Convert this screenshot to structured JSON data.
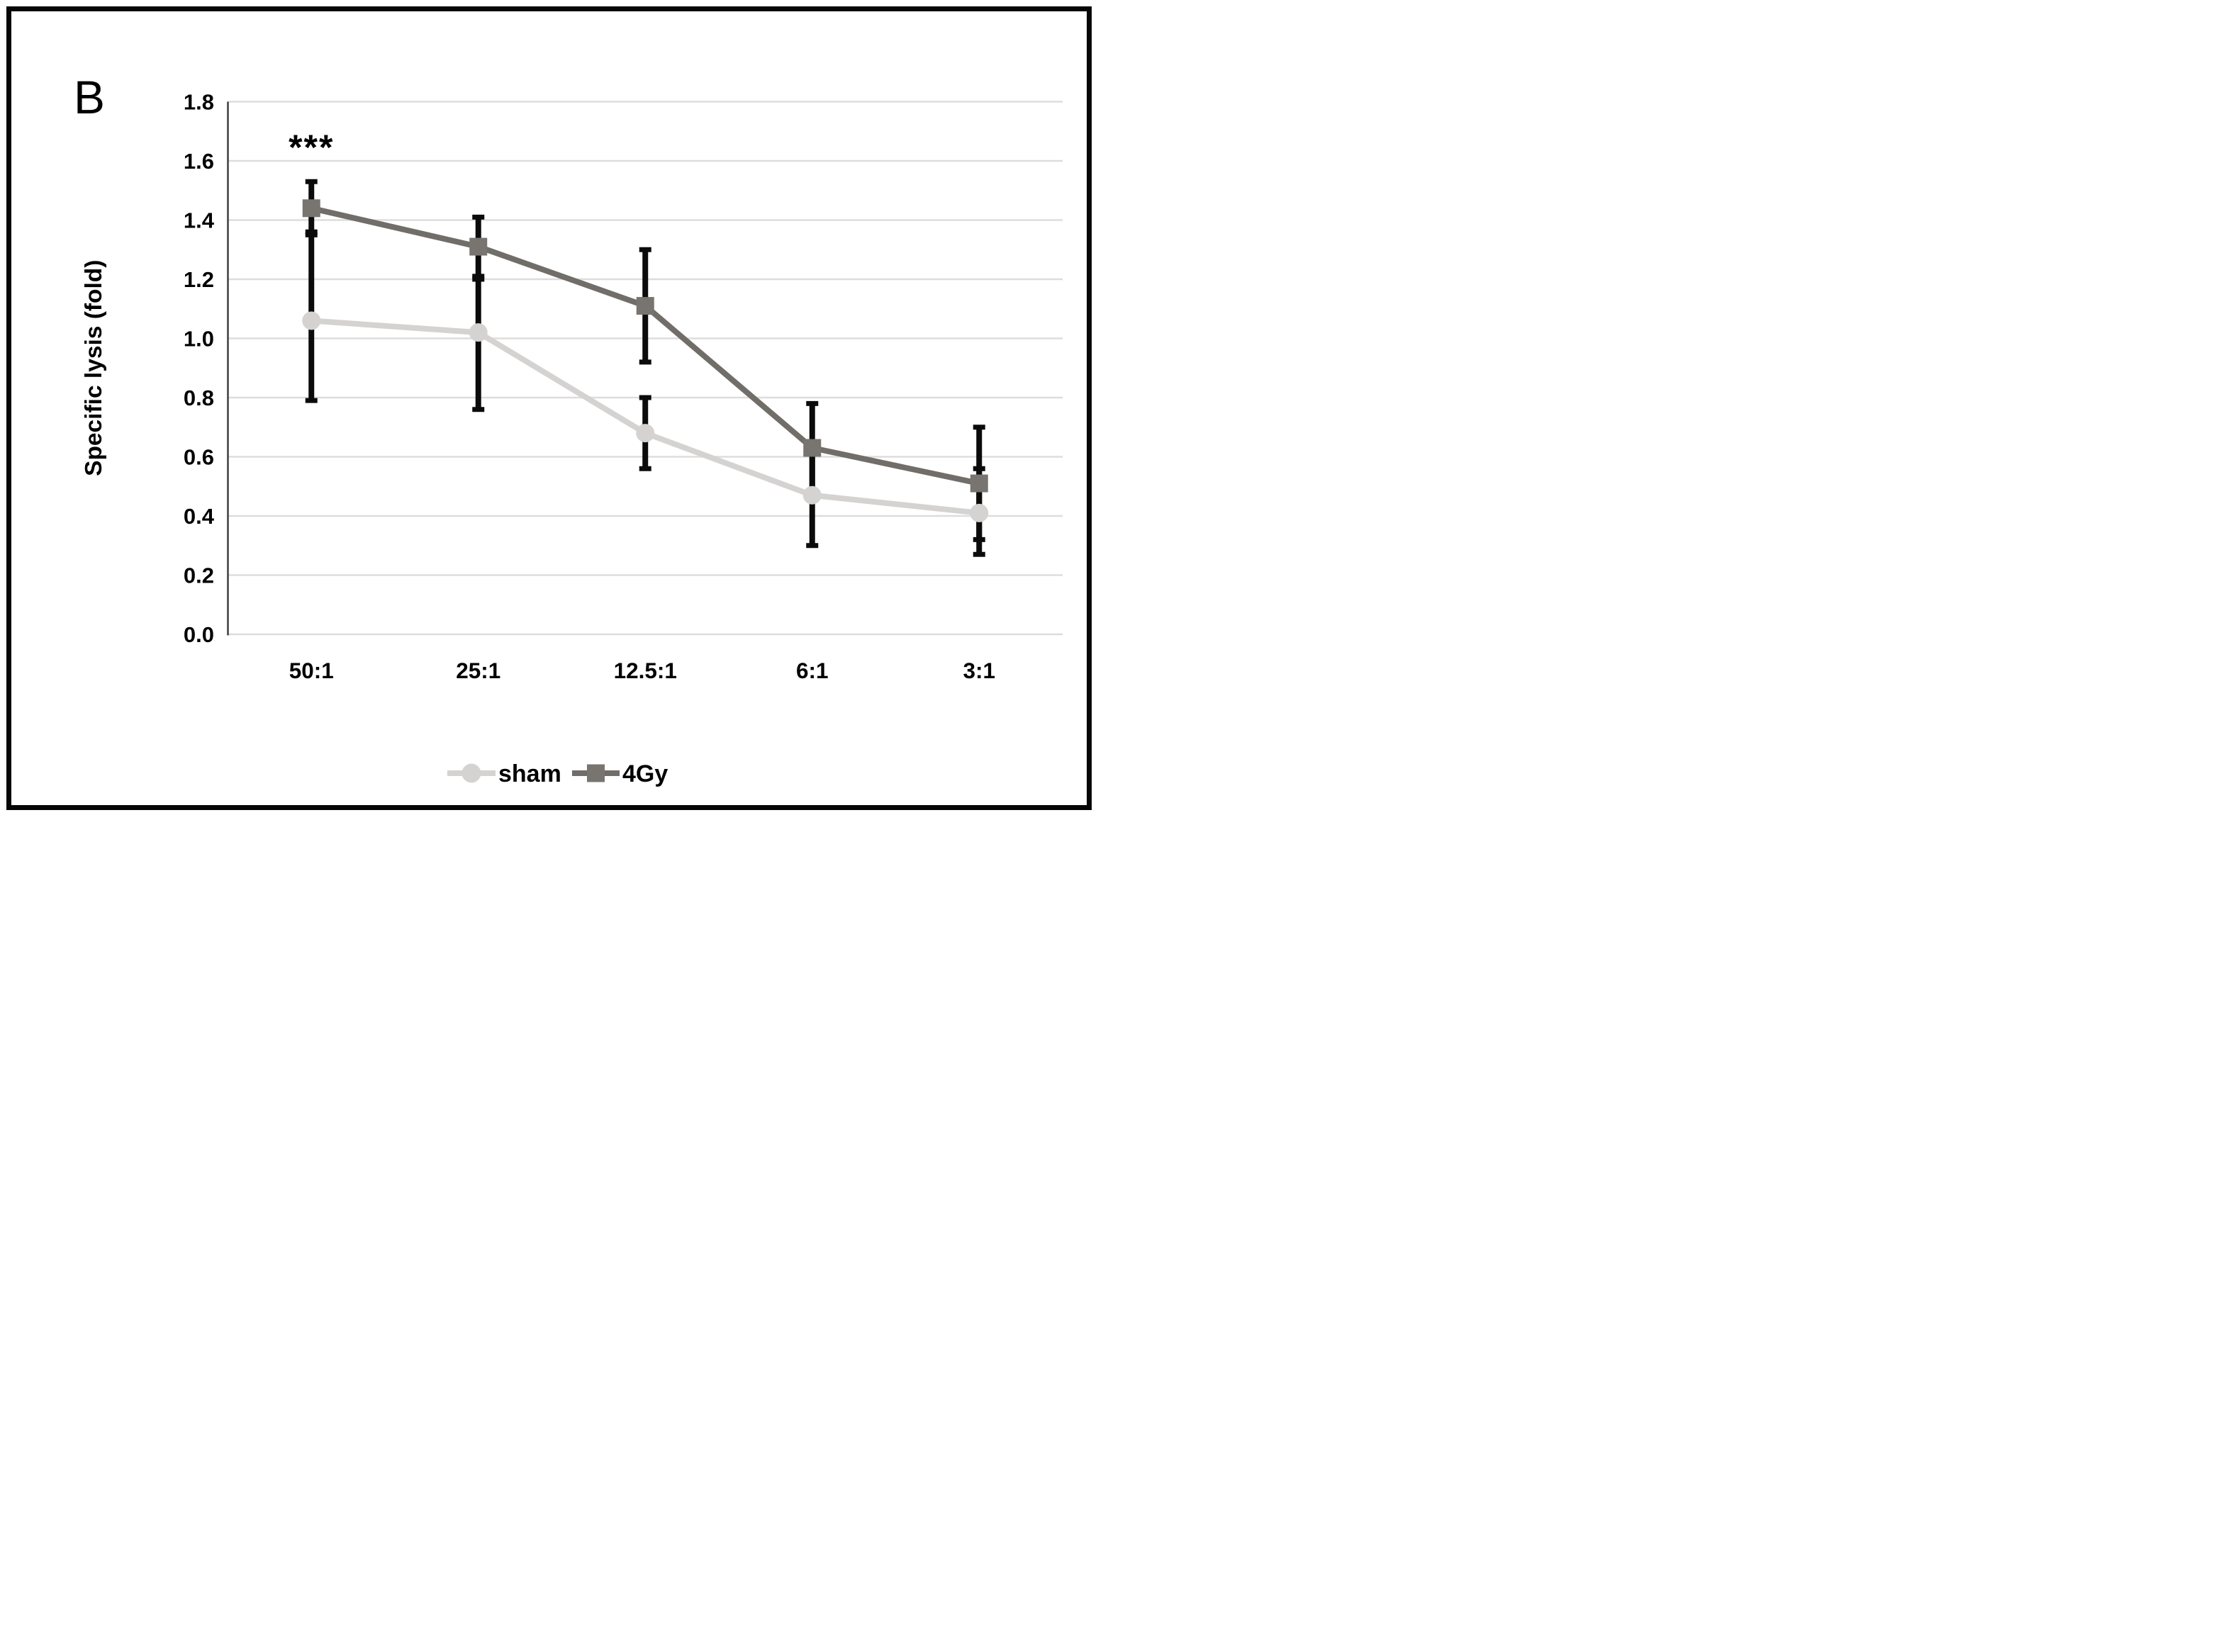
{
  "panel_label": "B",
  "figure": {
    "annotation_text": "***",
    "y_axis_title": "Specific lysis (fold)"
  },
  "colors": {
    "sham": "#d5d3d1",
    "gy4": "#716d69",
    "gy4_marker": "#787470",
    "grid": "#dddddd",
    "axis": "#3f3f3f",
    "error_bar": "#0b0b0b",
    "text": "#000000",
    "border": "#060606"
  },
  "chart_data": {
    "type": "line",
    "title": "",
    "xlabel": "",
    "ylabel": "Specific lysis (fold)",
    "categories": [
      "50:1",
      "25:1",
      "12.5:1",
      "6:1",
      "3:1"
    ],
    "ylim": [
      0.0,
      1.8
    ],
    "yticks": [
      1.8,
      1.6,
      1.4,
      1.2,
      1.0,
      0.8,
      0.6,
      0.4,
      0.2,
      0.0
    ],
    "grid": true,
    "legend_position": "bottom",
    "annotation": {
      "text": "***",
      "category": "50:1",
      "y": 1.66
    },
    "series": [
      {
        "name": "sham",
        "marker": "circle",
        "color": "#d5d3d1",
        "values": [
          1.06,
          1.02,
          0.68,
          0.47,
          0.41
        ],
        "err_lo": [
          0.79,
          0.76,
          0.56,
          0.3,
          0.27
        ],
        "err_hi": [
          1.35,
          1.21,
          0.8,
          0.63,
          0.56
        ]
      },
      {
        "name": "4Gy",
        "marker": "square",
        "color": "#716d69",
        "marker_color": "#787470",
        "values": [
          1.44,
          1.31,
          1.11,
          0.63,
          0.51
        ],
        "err_lo": [
          1.36,
          1.2,
          0.92,
          0.47,
          0.32
        ],
        "err_hi": [
          1.53,
          1.41,
          1.3,
          0.78,
          0.7
        ]
      }
    ]
  }
}
